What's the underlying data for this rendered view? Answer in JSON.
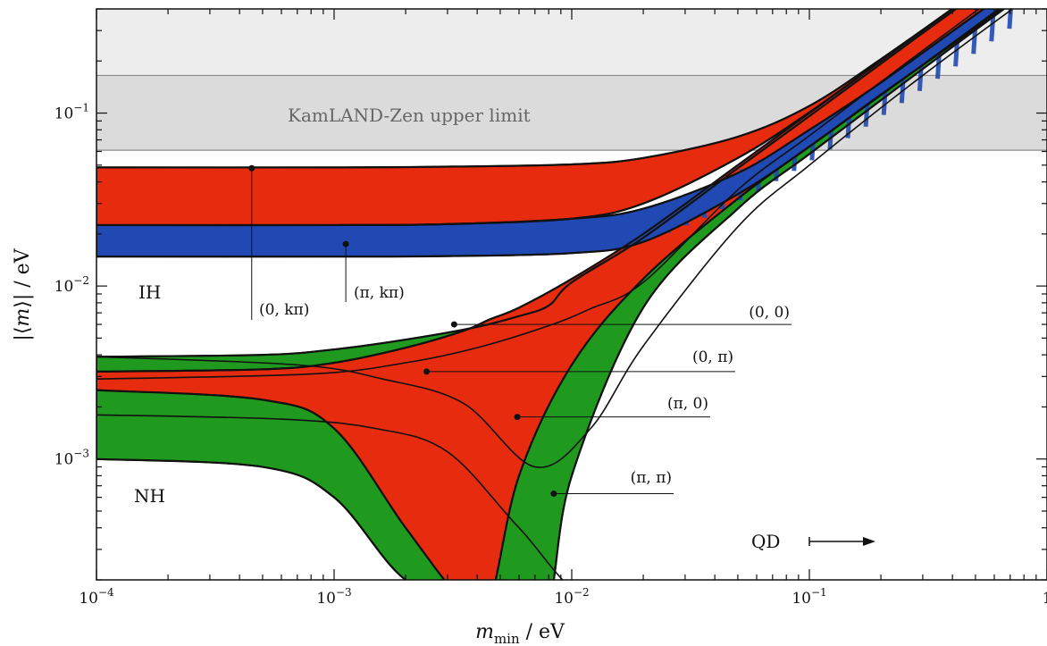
{
  "chart_data": {
    "type": "area",
    "title": "",
    "xlabel": "m_min / eV",
    "ylabel": "|⟨m⟩| / eV",
    "x_scale": "log",
    "y_scale": "log",
    "xlim": [
      0.0001,
      1
    ],
    "ylim": [
      0.0002,
      0.4
    ],
    "grid": false,
    "x_tick_labels": [
      "10^-4",
      "10^-3",
      "10^-2",
      "10^-1",
      "1"
    ],
    "y_tick_labels": [
      "10^-3",
      "10^-2",
      "10^-1"
    ],
    "colors": {
      "red": "#e62b0f",
      "green": "#1f9a1f",
      "blue": "#2149b4",
      "experimental_band": "#d5d5d5",
      "excluded_light": "#ededed"
    },
    "bands": [
      {
        "name": "KamLAND-Zen upper limit",
        "y_range": [
          0.061,
          0.165
        ]
      }
    ],
    "region_labels": {
      "ih": "IH",
      "nh": "NH",
      "qd": "QD"
    },
    "phase_labels": [
      {
        "text": "(0, kπ)",
        "point": [
          0.00045,
          0.048
        ]
      },
      {
        "text": "(π, kπ)",
        "point": [
          0.00112,
          0.0175
        ]
      },
      {
        "text": "(0, 0)",
        "point": [
          0.0032,
          0.006
        ]
      },
      {
        "text": "(0, π)",
        "point": [
          0.00245,
          0.0032
        ]
      },
      {
        "text": "(π, 0)",
        "point": [
          0.0059,
          0.00175
        ]
      },
      {
        "text": "(π, π)",
        "point": [
          0.0084,
          0.00063
        ]
      }
    ],
    "series": [
      {
        "name": "IH upper red",
        "color": "red",
        "x": [
          0.0001,
          0.001,
          0.003,
          0.01,
          0.02,
          0.05,
          0.1,
          0.2,
          0.5,
          1
        ],
        "y_low": [
          0.0225,
          0.0225,
          0.0228,
          0.0245,
          0.03,
          0.055,
          0.101,
          0.201,
          0.5,
          1
        ],
        "y_high": [
          0.0485,
          0.0485,
          0.049,
          0.0505,
          0.055,
          0.073,
          0.11,
          0.205,
          0.5,
          1
        ]
      },
      {
        "name": "IH lower blue",
        "color": "blue",
        "x": [
          0.0001,
          0.001,
          0.003,
          0.01,
          0.02,
          0.05,
          0.1,
          0.2,
          0.5,
          1
        ],
        "y_low": [
          0.0148,
          0.0148,
          0.0149,
          0.0155,
          0.018,
          0.034,
          0.064,
          0.128,
          0.31,
          0.62
        ],
        "y_high": [
          0.0225,
          0.0225,
          0.0228,
          0.0245,
          0.028,
          0.045,
          0.08,
          0.15,
          0.37,
          0.72
        ]
      },
      {
        "name": "NH red",
        "color": "red",
        "x": [
          0.0001,
          0.0005,
          0.001,
          0.002,
          0.0035,
          0.0045,
          0.006,
          0.01,
          0.02,
          0.05,
          0.1,
          0.3,
          1
        ],
        "y_low": [
          0.0025,
          0.0022,
          0.0015,
          0.0004,
          0.00015,
          0.00015,
          0.0008,
          0.0035,
          0.011,
          0.032,
          0.064,
          0.19,
          0.64
        ],
        "y_high": [
          0.0032,
          0.0033,
          0.0036,
          0.0044,
          0.0055,
          0.0064,
          0.0075,
          0.011,
          0.02,
          0.05,
          0.1,
          0.3,
          1
        ]
      },
      {
        "name": "NH green",
        "color": "green",
        "x": [
          0.0001,
          0.0005,
          0.001,
          0.002,
          0.004,
          0.006,
          0.008,
          0.01,
          0.02,
          0.05,
          0.1,
          0.3,
          1
        ],
        "y_low": [
          0.001,
          0.0009,
          0.0006,
          0.0002,
          0.00015,
          0.00015,
          0.00015,
          0.0008,
          0.0075,
          0.028,
          0.058,
          0.18,
          0.61
        ],
        "y_high": [
          0.0039,
          0.004,
          0.0043,
          0.0049,
          0.0058,
          0.0067,
          0.0077,
          0.0105,
          0.019,
          0.048,
          0.096,
          0.29,
          0.96
        ]
      }
    ]
  }
}
